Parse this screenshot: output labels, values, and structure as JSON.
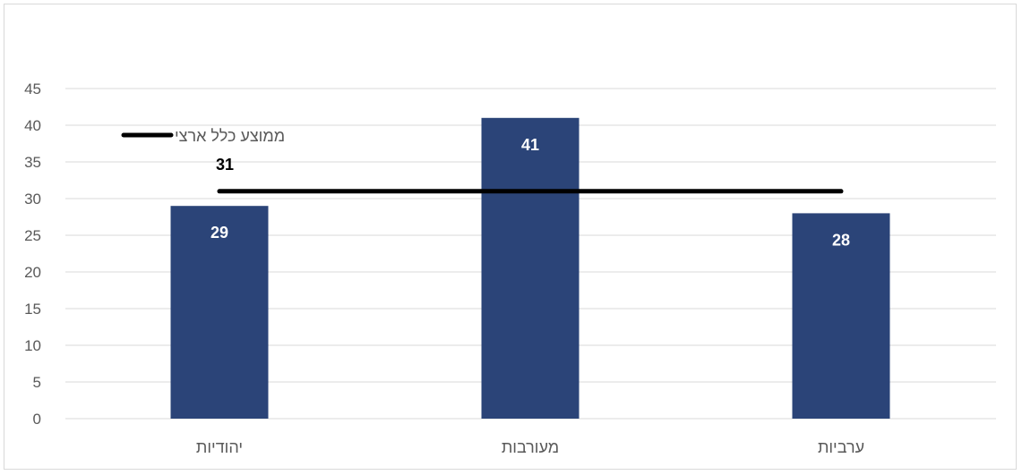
{
  "chart_data": {
    "type": "bar",
    "categories": [
      "יהודיות",
      "מעורבות",
      "ערביות"
    ],
    "values": [
      29,
      41,
      28
    ],
    "bar_value_labels": [
      "29",
      "41",
      "28"
    ],
    "ylim": [
      0,
      45
    ],
    "yticks": [
      0,
      5,
      10,
      15,
      20,
      25,
      30,
      35,
      40,
      45
    ],
    "grid": true,
    "title": "",
    "xlabel": "",
    "ylabel": "",
    "reference_line": {
      "name": "ממוצע כלל ארצי",
      "value": 31,
      "value_label": "31"
    },
    "legend_position": "top-left",
    "colors": {
      "bar": "#2b4478",
      "reference_line": "#000000",
      "grid": "#d9d9d9",
      "axis_text": "#595959"
    }
  }
}
